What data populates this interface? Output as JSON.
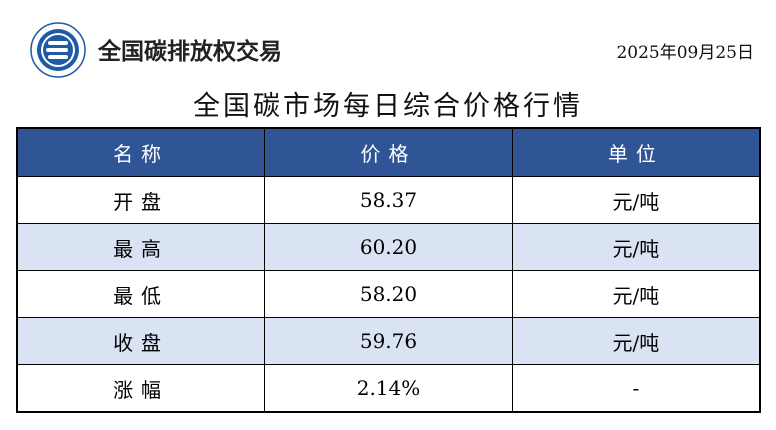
{
  "header": {
    "brand": "全国碳排放权交易",
    "date": "2025年09月25日",
    "logo_icon": "carbon-exchange-logo",
    "brand_color": "#1f5aa6"
  },
  "title": "全国碳市场每日综合价格行情",
  "table": {
    "header_color": "#2f5597",
    "alt_row_color": "#dae3f3",
    "columns": [
      "名称",
      "价格",
      "单位"
    ],
    "rows": [
      {
        "name": "开盘",
        "price": "58.37",
        "unit": "元/吨"
      },
      {
        "name": "最高",
        "price": "60.20",
        "unit": "元/吨"
      },
      {
        "name": "最低",
        "price": "58.20",
        "unit": "元/吨"
      },
      {
        "name": "收盘",
        "price": "59.76",
        "unit": "元/吨"
      },
      {
        "name": "涨幅",
        "price": "2.14%",
        "unit": "-"
      }
    ]
  }
}
